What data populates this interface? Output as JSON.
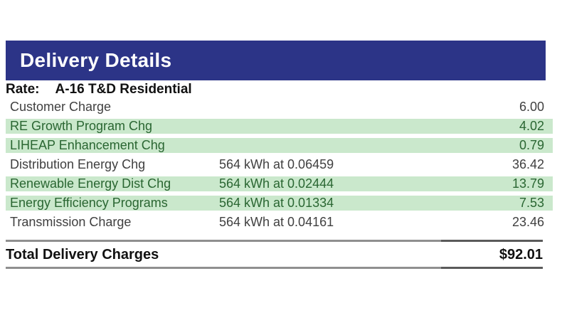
{
  "header": {
    "title": "Delivery Details"
  },
  "rate": {
    "label": "Rate:",
    "value": "A-16 T&D Residential"
  },
  "charges": [
    {
      "label": "Customer Charge",
      "usage": "",
      "amount": "6.00"
    },
    {
      "label": "RE Growth Program Chg",
      "usage": "",
      "amount": "4.02"
    },
    {
      "label": "LIHEAP Enhancement Chg",
      "usage": "",
      "amount": "0.79"
    },
    {
      "label": "Distribution Energy Chg",
      "usage": "564 kWh at 0.06459",
      "amount": "36.42"
    },
    {
      "label": "Renewable Energy Dist Chg",
      "usage": "564 kWh at 0.02444",
      "amount": "13.79"
    },
    {
      "label": "Energy Efficiency Programs",
      "usage": "564 kWh at 0.01334",
      "amount": "7.53"
    },
    {
      "label": "Transmission Charge",
      "usage": "564 kWh at 0.04161",
      "amount": "23.46"
    }
  ],
  "total": {
    "label": "Total Delivery Charges",
    "amount": "$92.01"
  },
  "colors": {
    "banner_bg": "#2c3487",
    "highlight_bg": "#cae8cc",
    "highlight_text": "#2a6632"
  }
}
